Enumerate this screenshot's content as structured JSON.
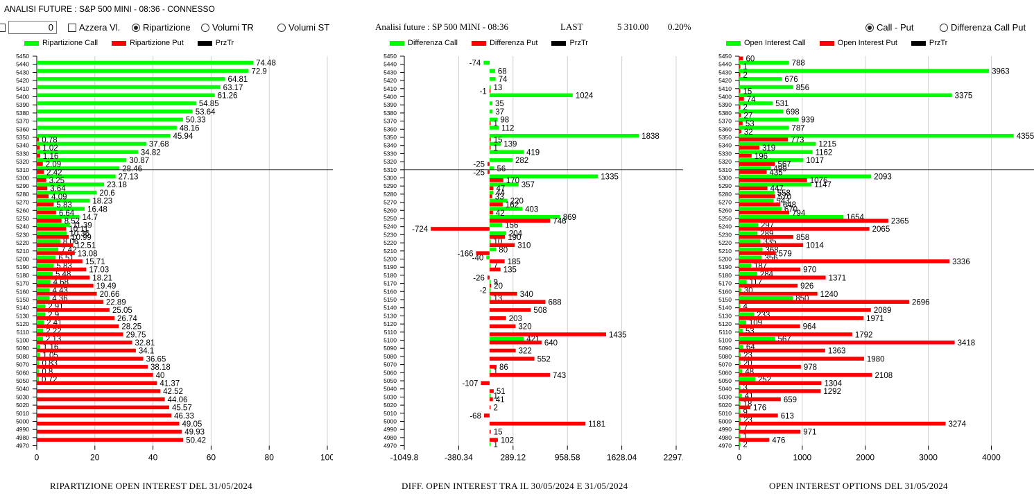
{
  "app_title": "ANALISI FUTURE : S&P 500 MINI - 08:36 - CONNESSO",
  "controls": {
    "number_value": "0",
    "azzera_label": "Azzera Vl.",
    "radio_ripartizione": "Ripartizione",
    "radio_volumi_tr": "Volumi TR",
    "radio_volumi_st": "Volumi ST",
    "selected_mode": "Ripartizione"
  },
  "header": {
    "title": "Analisi future : SP 500 MINI - 08:36",
    "last_label": "LAST",
    "last_value": "5 310.00",
    "change": "0.20%"
  },
  "right_controls": {
    "radio_call_put": "Call - Put",
    "radio_diff": "Differenza Call Put",
    "selected": "Call - Put"
  },
  "colors": {
    "call": "#00ff00",
    "put": "#ff0000",
    "przTr": "#000000",
    "grid": "#d0d0d0"
  },
  "chart_data": [
    {
      "type": "bar",
      "orientation": "horizontal",
      "title": "RIPARTIZIONE OPEN INTEREST DEL 31/05/2024",
      "legend": [
        "Ripartizione Call",
        "Ripartizione Put",
        "PrzTr"
      ],
      "legend_position": "top",
      "xlim": [
        0,
        100
      ],
      "xticks": [
        "0",
        "20",
        "40",
        "60",
        "80",
        "100"
      ],
      "grid": true,
      "price_line": 5310,
      "categories": [
        5450,
        5440,
        5430,
        5420,
        5410,
        5400,
        5390,
        5380,
        5370,
        5360,
        5350,
        5340,
        5330,
        5320,
        5310,
        5300,
        5290,
        5280,
        5270,
        5260,
        5250,
        5240,
        5230,
        5220,
        5210,
        5200,
        5190,
        5180,
        5170,
        5160,
        5150,
        5140,
        5130,
        5120,
        5110,
        5100,
        5090,
        5080,
        5070,
        5060,
        5050,
        5040,
        5030,
        5020,
        5010,
        5000,
        4990,
        4980,
        4970
      ],
      "series": [
        {
          "name": "Ripartizione Call",
          "values": [
            null,
            74.48,
            72.9,
            64.81,
            63.17,
            61.26,
            54.85,
            53.64,
            50.33,
            48.16,
            45.94,
            37.68,
            34.82,
            30.87,
            28.46,
            27.13,
            23.18,
            20.6,
            18.23,
            16.48,
            14.7,
            11.39,
            10.36,
            8.06,
            7.42,
            6.51,
            5.83,
            5.48,
            4.68,
            4.43,
            4.36,
            2.91,
            2.9,
            2.41,
            2.22,
            2.13,
            1.16,
            1.05,
            0.83,
            0.8,
            0.72,
            null,
            null,
            null,
            null,
            null,
            null,
            null,
            null
          ]
        },
        {
          "name": "Ripartizione Put",
          "values": [
            null,
            null,
            null,
            null,
            null,
            null,
            null,
            null,
            null,
            null,
            0.78,
            1.02,
            1.16,
            2.09,
            2.42,
            3.25,
            3.64,
            4.09,
            5.83,
            6.64,
            8.52,
            10.11,
            10.99,
            12.51,
            13.08,
            15.71,
            17.03,
            18.21,
            19.49,
            20.66,
            22.89,
            25.05,
            26.74,
            28.25,
            29.75,
            32.81,
            34.1,
            36.65,
            38.18,
            40,
            41.37,
            42.52,
            44.06,
            45.57,
            46.33,
            49.05,
            49.93,
            50.42,
            null
          ]
        }
      ]
    },
    {
      "type": "bar",
      "orientation": "horizontal",
      "title": "DIFF. OPEN INTEREST TRA IL 30/05/2024 E 31/05/2024",
      "legend": [
        "Differenza Call",
        "Differenza Put",
        "PrzTr"
      ],
      "legend_position": "top",
      "xlim": [
        -1049.8,
        2297.5
      ],
      "xticks": [
        "-1049.8",
        "-380.34",
        "289.12",
        "958.58",
        "1628.04",
        "2297.5"
      ],
      "grid": true,
      "price_line": 5310,
      "categories": [
        5450,
        5440,
        5430,
        5420,
        5410,
        5400,
        5390,
        5380,
        5370,
        5360,
        5350,
        5340,
        5330,
        5320,
        5310,
        5300,
        5290,
        5280,
        5270,
        5260,
        5250,
        5240,
        5230,
        5220,
        5210,
        5200,
        5190,
        5180,
        5170,
        5160,
        5150,
        5140,
        5130,
        5120,
        5110,
        5100,
        5090,
        5080,
        5070,
        5060,
        5050,
        5040,
        5030,
        5020,
        5010,
        5000,
        4990,
        4980,
        4970
      ],
      "series": [
        {
          "name": "Differenza Call",
          "values": [
            null,
            -74,
            68,
            74,
            13,
            1024,
            35,
            37,
            98,
            112,
            1838,
            139,
            419,
            282,
            56,
            1335,
            357,
            44,
            220,
            403,
            869,
            156,
            204,
            10,
            80,
            -40,
            7,
            null,
            9,
            -2,
            13,
            null,
            null,
            null,
            null,
            421,
            null,
            null,
            null,
            1,
            null,
            null,
            1,
            null,
            null,
            null,
            null,
            null,
            1
          ]
        },
        {
          "name": "Differenza Put",
          "values": [
            null,
            null,
            null,
            null,
            -1,
            null,
            null,
            null,
            1,
            null,
            15,
            1,
            null,
            -25,
            -25,
            170,
            47,
            33,
            162,
            42,
            746,
            -724,
            190,
            310,
            -166,
            185,
            135,
            -26,
            20,
            340,
            688,
            508,
            203,
            320,
            1435,
            640,
            322,
            552,
            86,
            743,
            -107,
            51,
            41,
            2,
            -68,
            1181,
            15,
            102,
            null
          ]
        }
      ]
    },
    {
      "type": "bar",
      "orientation": "horizontal",
      "title": "OPEN INTEREST OPTIONS DEL 31/05/2024",
      "legend": [
        "Open Interest Call",
        "Open Interest Put",
        "PrzTr"
      ],
      "legend_position": "top",
      "xlim": [
        0,
        4600
      ],
      "xticks": [
        "0",
        "1000",
        "2000",
        "3000",
        "4000"
      ],
      "grid": true,
      "price_line": 5310,
      "categories": [
        5450,
        5440,
        5430,
        5420,
        5410,
        5400,
        5390,
        5380,
        5370,
        5360,
        5350,
        5340,
        5330,
        5320,
        5310,
        5300,
        5290,
        5280,
        5270,
        5260,
        5250,
        5240,
        5230,
        5220,
        5210,
        5200,
        5190,
        5180,
        5170,
        5160,
        5150,
        5140,
        5130,
        5120,
        5110,
        5100,
        5090,
        5080,
        5070,
        5060,
        5050,
        5040,
        5030,
        5020,
        5010,
        5000,
        4990,
        4980,
        4970
      ],
      "series": [
        {
          "name": "Open Interest Call",
          "values": [
            null,
            788,
            3963,
            676,
            856,
            3375,
            531,
            698,
            939,
            787,
            4355,
            1215,
            1162,
            1017,
            499,
            2093,
            1147,
            558,
            543,
            670,
            1654,
            297,
            289,
            335,
            368,
            356,
            187,
            284,
            117,
            30,
            850,
            4,
            233,
            109,
            53,
            567,
            64,
            23,
            20,
            48,
            252,
            3,
            41,
            18,
            9,
            23,
            7,
            1,
            2
          ]
        },
        {
          "name": "Open Interest Put",
          "values": [
            60,
            1,
            2,
            null,
            15,
            74,
            2,
            27,
            53,
            32,
            773,
            319,
            196,
            567,
            435,
            1076,
            447,
            570,
            648,
            794,
            2365,
            2065,
            858,
            1014,
            579,
            3336,
            970,
            1371,
            926,
            1240,
            2696,
            2089,
            1971,
            964,
            1792,
            3418,
            1363,
            1980,
            978,
            2108,
            1304,
            1292,
            659,
            176,
            613,
            3274,
            971,
            476,
            null
          ]
        }
      ]
    }
  ]
}
